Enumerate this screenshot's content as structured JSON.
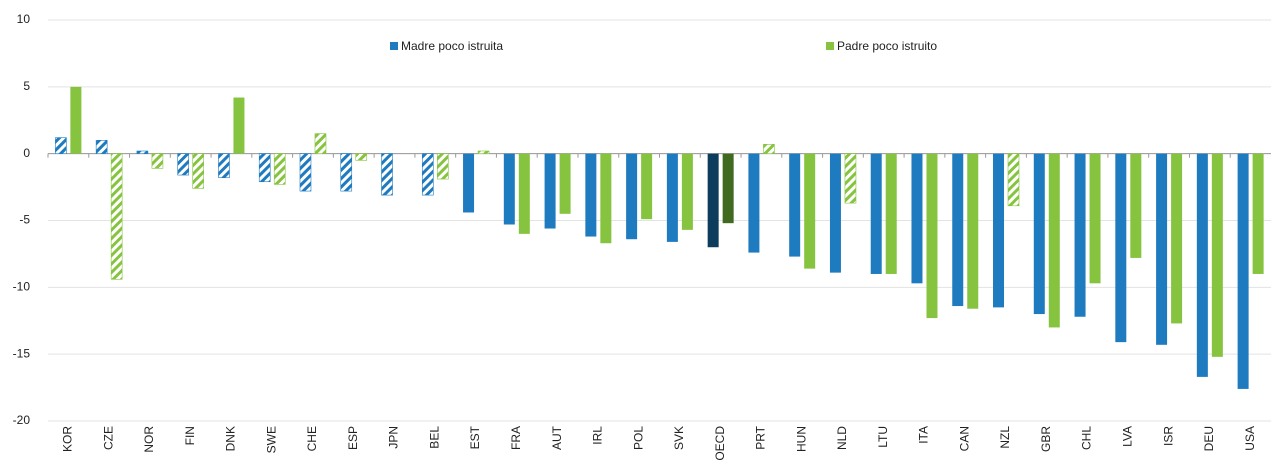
{
  "chart_data": {
    "type": "bar",
    "categories": [
      "KOR",
      "CZE",
      "NOR",
      "FIN",
      "DNK",
      "SWE",
      "CHE",
      "ESP",
      "JPN",
      "BEL",
      "EST",
      "FRA",
      "AUT",
      "IRL",
      "POL",
      "SVK",
      "OECD",
      "PRT",
      "HUN",
      "NLD",
      "LTU",
      "ITA",
      "CAN",
      "NZL",
      "GBR",
      "CHL",
      "LVA",
      "ISR",
      "DEU",
      "USA"
    ],
    "highlighted": [
      false,
      false,
      false,
      false,
      false,
      false,
      false,
      false,
      false,
      false,
      false,
      false,
      false,
      false,
      false,
      false,
      true,
      false,
      false,
      false,
      false,
      false,
      false,
      false,
      false,
      false,
      false,
      false,
      false,
      false
    ],
    "series": [
      {
        "name": "Madre poco istruita",
        "color": "#1f7bbf",
        "highlight_color": "#0c3d5c",
        "values": [
          1.2,
          1.0,
          0.2,
          -1.6,
          -1.8,
          -2.1,
          -2.8,
          -2.8,
          -3.1,
          -3.1,
          -4.4,
          -5.3,
          -5.6,
          -6.2,
          -6.4,
          -6.6,
          -7.0,
          -7.4,
          -7.7,
          -8.9,
          -9.0,
          -9.7,
          -11.4,
          -11.5,
          -12.0,
          -12.2,
          -14.1,
          -14.3,
          -16.7,
          -17.6
        ],
        "hatched": [
          true,
          true,
          true,
          true,
          true,
          true,
          true,
          true,
          true,
          true,
          false,
          false,
          false,
          false,
          false,
          false,
          false,
          false,
          false,
          false,
          false,
          false,
          false,
          false,
          false,
          false,
          false,
          false,
          false,
          false
        ]
      },
      {
        "name": "Padre poco istruito",
        "color": "#86c440",
        "highlight_color": "#3f6a20",
        "values": [
          5.0,
          -9.4,
          -1.1,
          -2.6,
          4.2,
          -2.3,
          1.5,
          -0.5,
          null,
          -1.9,
          0.2,
          -6.0,
          -4.5,
          -6.7,
          -4.9,
          -5.7,
          -5.2,
          0.7,
          -8.6,
          -3.7,
          -9.0,
          -12.3,
          -11.6,
          -3.9,
          -13.0,
          -9.7,
          -7.8,
          -12.7,
          -15.2,
          -9.0
        ],
        "hatched": [
          false,
          true,
          true,
          true,
          false,
          true,
          true,
          true,
          false,
          true,
          true,
          false,
          false,
          false,
          false,
          false,
          false,
          true,
          false,
          true,
          false,
          false,
          false,
          true,
          false,
          false,
          false,
          false,
          false,
          false
        ]
      }
    ],
    "ylim": [
      -20,
      10
    ],
    "yticks": [
      -20,
      -15,
      -10,
      -5,
      0,
      5,
      10
    ],
    "grid": true
  }
}
